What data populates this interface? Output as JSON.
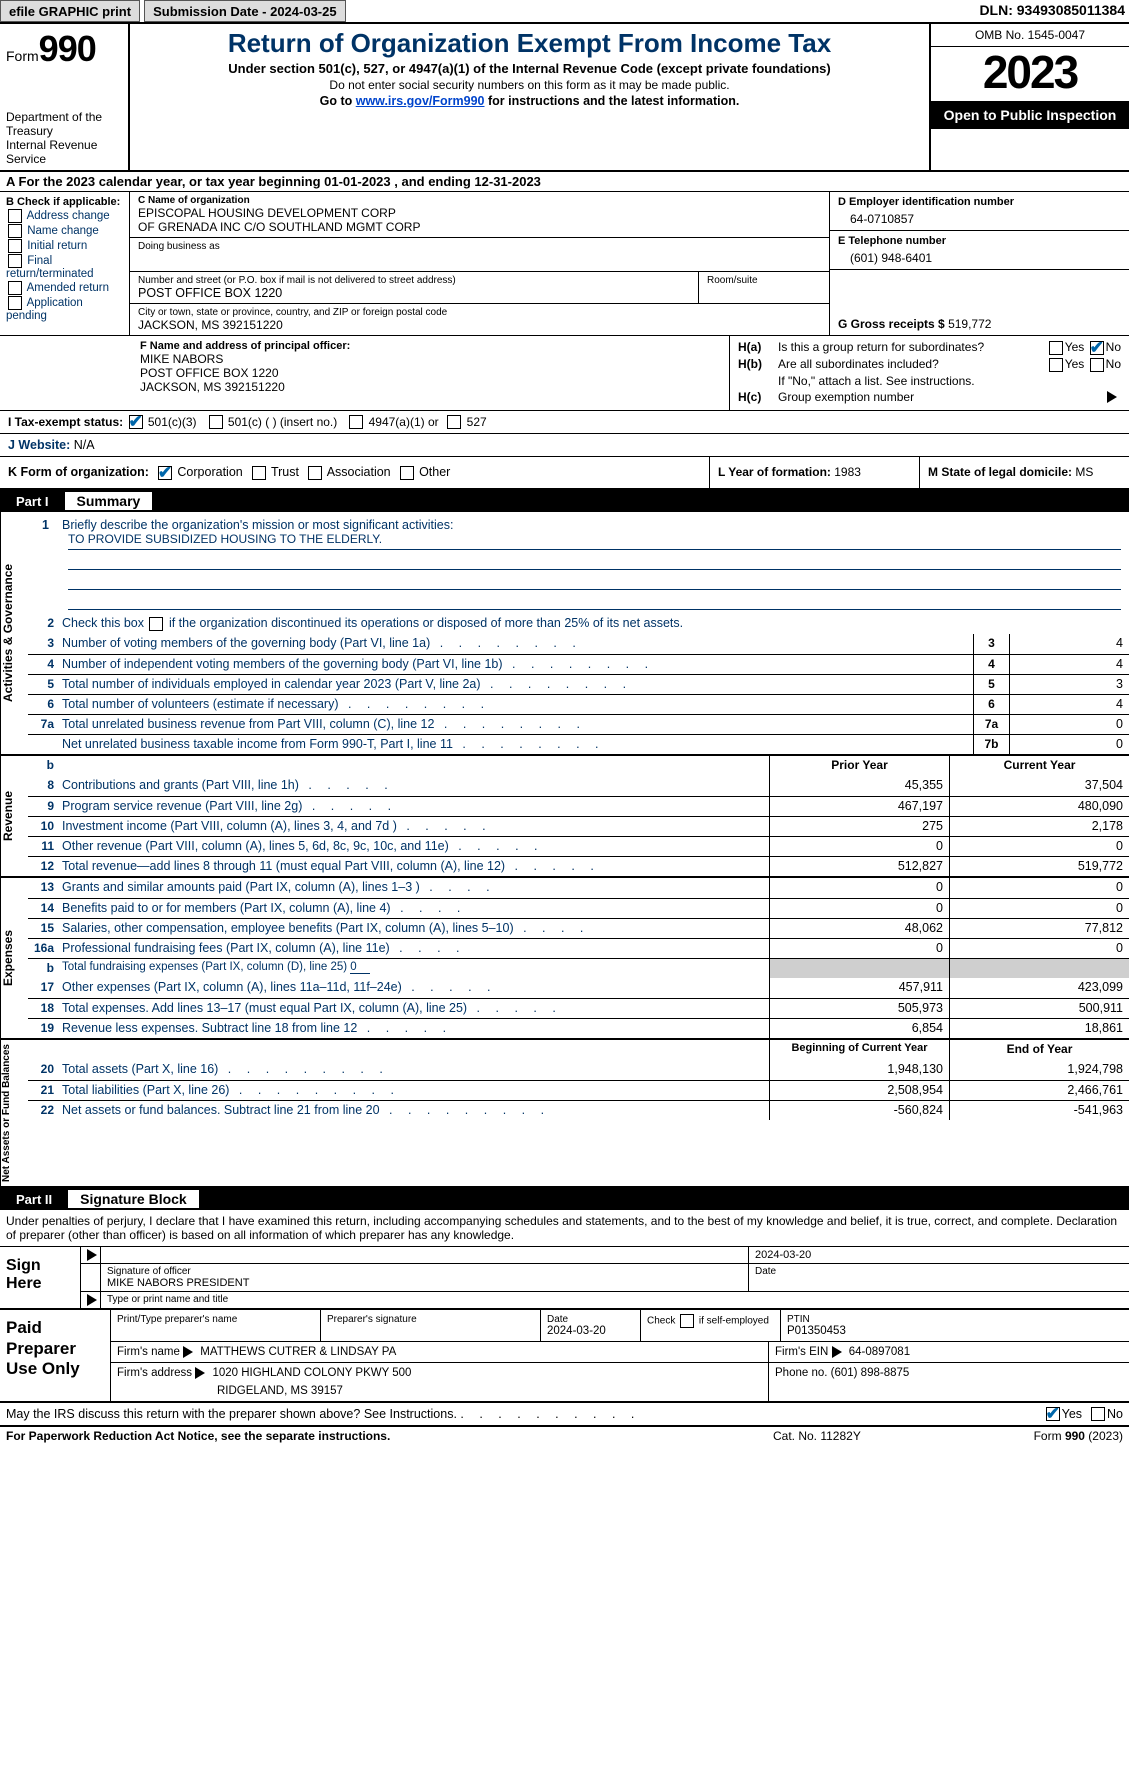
{
  "topbar": {
    "efile": "efile GRAPHIC print",
    "sub_label": "Submission Date - 2024-03-25",
    "dln": "DLN: 93493085011384"
  },
  "header": {
    "form_prefix": "Form",
    "form_num": "990",
    "dept1": "Department of the Treasury",
    "dept2": "Internal Revenue Service",
    "title": "Return of Organization Exempt From Income Tax",
    "sub1": "Under section 501(c), 527, or 4947(a)(1) of the Internal Revenue Code (except private foundations)",
    "sub2": "Do not enter social security numbers on this form as it may be made public.",
    "sub3_pre": "Go to ",
    "sub3_link": "www.irs.gov/Form990",
    "sub3_post": " for instructions and the latest information.",
    "omb": "OMB No. 1545-0047",
    "year": "2023",
    "open": "Open to Public Inspection"
  },
  "rowA": "A For the 2023 calendar year, or tax year beginning 01-01-2023    , and ending 12-31-2023",
  "colB": {
    "hd": "B Check if applicable:",
    "opts": [
      "Address change",
      "Name change",
      "Initial return",
      "Final return/terminated",
      "Amended return",
      "Application pending"
    ]
  },
  "colC": {
    "name_lbl": "C Name of organization",
    "name": "EPISCOPAL HOUSING DEVELOPMENT CORP\nOF GRENADA INC C/O SOUTHLAND MGMT CORP",
    "dba_lbl": "Doing business as",
    "dba": "",
    "street_lbl": "Number and street (or P.O. box if mail is not delivered to street address)",
    "street": "POST OFFICE BOX 1220",
    "room_lbl": "Room/suite",
    "city_lbl": "City or town, state or province, country, and ZIP or foreign postal code",
    "city": "JACKSON, MS  392151220"
  },
  "colD": {
    "ein_lbl": "D Employer identification number",
    "ein": "64-0710857",
    "tel_lbl": "E Telephone number",
    "tel": "(601) 948-6401",
    "gross_lbl": "G Gross receipts $ ",
    "gross": "519,772"
  },
  "colF": {
    "lbl": "F  Name and address of principal officer:",
    "name": "MIKE NABORS",
    "addr1": "POST OFFICE BOX 1220",
    "addr2": "JACKSON, MS  392151220"
  },
  "colH": {
    "ha_k": "H(a)",
    "ha_q": "Is this a group return for subordinates?",
    "hb_k": "H(b)",
    "hb_q": "Are all subordinates included?",
    "hb_note": "If \"No,\" attach a list. See instructions.",
    "hc_k": "H(c)",
    "hc_q": "Group exemption number ",
    "yes": "Yes",
    "no": "No"
  },
  "rowI": {
    "lbl": "I   Tax-exempt status:",
    "o1": "501(c)(3)",
    "o2": "501(c) (   ) (insert no.)",
    "o3": "4947(a)(1) or",
    "o4": "527"
  },
  "rowJ": {
    "lbl": "J   Website: ",
    "val": "N/A"
  },
  "rowK": {
    "lbl": "K Form of organization:",
    "o1": "Corporation",
    "o2": "Trust",
    "o3": "Association",
    "o4": "Other"
  },
  "rowL": {
    "lbl": "L Year of formation: ",
    "val": "1983"
  },
  "rowM": {
    "lbl": "M State of legal domicile: ",
    "val": "MS"
  },
  "part1": {
    "num": "Part I",
    "title": "Summary"
  },
  "mission": {
    "lbl": "Briefly describe the organization's mission or most significant activities:",
    "text": "TO PROVIDE SUBSIDIZED HOUSING TO THE ELDERLY."
  },
  "line2": "Check this box        if the organization discontinued its operations or disposed of more than 25% of its net assets.",
  "govlines": [
    {
      "n": "3",
      "d": "Number of voting members of the governing body (Part VI, line 1a)",
      "k": "3",
      "v": "4"
    },
    {
      "n": "4",
      "d": "Number of independent voting members of the governing body (Part VI, line 1b)",
      "k": "4",
      "v": "4"
    },
    {
      "n": "5",
      "d": "Total number of individuals employed in calendar year 2023 (Part V, line 2a)",
      "k": "5",
      "v": "3"
    },
    {
      "n": "6",
      "d": "Total number of volunteers (estimate if necessary)",
      "k": "6",
      "v": "4"
    },
    {
      "n": "7a",
      "d": "Total unrelated business revenue from Part VIII, column (C), line 12",
      "k": "7a",
      "v": "0"
    },
    {
      "n": "",
      "d": "Net unrelated business taxable income from Form 990-T, Part I, line 11",
      "k": "7b",
      "v": "0"
    }
  ],
  "colheads": {
    "b": "b",
    "prior": "Prior Year",
    "current": "Current Year"
  },
  "revenue": [
    {
      "n": "8",
      "d": "Contributions and grants (Part VIII, line 1h)",
      "p": "45,355",
      "c": "37,504"
    },
    {
      "n": "9",
      "d": "Program service revenue (Part VIII, line 2g)",
      "p": "467,197",
      "c": "480,090"
    },
    {
      "n": "10",
      "d": "Investment income (Part VIII, column (A), lines 3, 4, and 7d )",
      "p": "275",
      "c": "2,178"
    },
    {
      "n": "11",
      "d": "Other revenue (Part VIII, column (A), lines 5, 6d, 8c, 9c, 10c, and 11e)",
      "p": "0",
      "c": "0"
    },
    {
      "n": "12",
      "d": "Total revenue—add lines 8 through 11 (must equal Part VIII, column (A), line 12)",
      "p": "512,827",
      "c": "519,772"
    }
  ],
  "expenses": [
    {
      "n": "13",
      "d": "Grants and similar amounts paid (Part IX, column (A), lines 1–3 )",
      "p": "0",
      "c": "0"
    },
    {
      "n": "14",
      "d": "Benefits paid to or for members (Part IX, column (A), line 4)",
      "p": "0",
      "c": "0"
    },
    {
      "n": "15",
      "d": "Salaries, other compensation, employee benefits (Part IX, column (A), lines 5–10)",
      "p": "48,062",
      "c": "77,812"
    },
    {
      "n": "16a",
      "d": "Professional fundraising fees (Part IX, column (A), line 11e)",
      "p": "0",
      "c": "0"
    }
  ],
  "exp_b": {
    "n": "b",
    "d": "Total fundraising expenses (Part IX, column (D), line 25) ",
    "v": "0"
  },
  "expenses2": [
    {
      "n": "17",
      "d": "Other expenses (Part IX, column (A), lines 11a–11d, 11f–24e)",
      "p": "457,911",
      "c": "423,099"
    },
    {
      "n": "18",
      "d": "Total expenses. Add lines 13–17 (must equal Part IX, column (A), line 25)",
      "p": "505,973",
      "c": "500,911"
    },
    {
      "n": "19",
      "d": "Revenue less expenses. Subtract line 18 from line 12",
      "p": "6,854",
      "c": "18,861"
    }
  ],
  "netheads": {
    "begin": "Beginning of Current Year",
    "end": "End of Year"
  },
  "netassets": [
    {
      "n": "20",
      "d": "Total assets (Part X, line 16)",
      "p": "1,948,130",
      "c": "1,924,798"
    },
    {
      "n": "21",
      "d": "Total liabilities (Part X, line 26)",
      "p": "2,508,954",
      "c": "2,466,761"
    },
    {
      "n": "22",
      "d": "Net assets or fund balances. Subtract line 21 from line 20",
      "p": "-560,824",
      "c": "-541,963"
    }
  ],
  "vtabs": {
    "gov": "Activities & Governance",
    "rev": "Revenue",
    "exp": "Expenses",
    "net": "Net Assets or Fund Balances"
  },
  "part2": {
    "num": "Part II",
    "title": "Signature Block"
  },
  "sig_intro": "Under penalties of perjury, I declare that I have examined this return, including accompanying schedules and statements, and to the best of my knowledge and belief, it is true, correct, and complete. Declaration of preparer (other than officer) is based on all information of which preparer has any knowledge.",
  "sign": {
    "left1": "Sign",
    "left2": "Here",
    "date": "2024-03-20",
    "sig_lbl": "Signature of officer",
    "name": "MIKE NABORS  PRESIDENT",
    "date_lbl": "Date",
    "type_lbl": "Type or print name and title"
  },
  "paid": {
    "left": "Paid Preparer Use Only",
    "h1": "Print/Type preparer's name",
    "h2": "Preparer's signature",
    "h3": "Date",
    "h3v": "2024-03-20",
    "h4": "Check        if self-employed",
    "h5": "PTIN",
    "h5v": "P01350453",
    "firm_lbl": "Firm's name  ",
    "firm": "MATTHEWS CUTRER & LINDSAY PA",
    "ein_lbl": "Firm's EIN ",
    "ein": "64-0897081",
    "addr_lbl": "Firm's address ",
    "addr1": "1020 HIGHLAND COLONY PKWY 500",
    "addr2": "RIDGELAND, MS  39157",
    "phone_lbl": "Phone no. ",
    "phone": "(601) 898-8875"
  },
  "discuss": {
    "q": "May the IRS discuss this return with the preparer shown above? See Instructions.",
    "yes": "Yes",
    "no": "No"
  },
  "footer": {
    "l": "For Paperwork Reduction Act Notice, see the separate instructions.",
    "m": "Cat. No. 11282Y",
    "r_pre": "Form ",
    "r_b": "990",
    "r_post": " (2023)"
  }
}
